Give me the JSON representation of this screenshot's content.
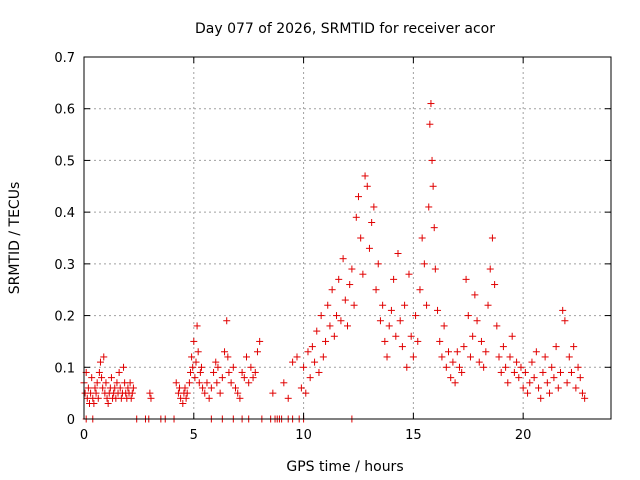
{
  "chart_data": {
    "type": "scatter",
    "marker": "plus",
    "title": "Day 077 of 2026, SRMTID for receiver acor",
    "xlabel": "GPS time / hours",
    "ylabel": "SRMTID / TECUs",
    "xlim": [
      0,
      24
    ],
    "ylim": [
      0,
      0.7
    ],
    "xticks": [
      0,
      5,
      10,
      15,
      20
    ],
    "yticks": [
      0,
      0.1,
      0.2,
      0.3,
      0.4,
      0.5,
      0.6,
      0.7
    ],
    "xtick_labels": [
      "0",
      "5",
      "10",
      "15",
      "20"
    ],
    "ytick_labels": [
      "0",
      "0.1",
      "0.2",
      "0.3",
      "0.4",
      "0.5",
      "0.6",
      "0.7"
    ],
    "grid": true,
    "series": [
      {
        "name": "acor",
        "color": "#e00000",
        "points": [
          [
            0.0,
            0.07
          ],
          [
            0.05,
            0.05
          ],
          [
            0.1,
            0.09
          ],
          [
            0.15,
            0.04
          ],
          [
            0.2,
            0.06
          ],
          [
            0.25,
            0.03
          ],
          [
            0.3,
            0.05
          ],
          [
            0.35,
            0.08
          ],
          [
            0.4,
            0.04
          ],
          [
            0.45,
            0.03
          ],
          [
            0.5,
            0.06
          ],
          [
            0.55,
            0.05
          ],
          [
            0.6,
            0.07
          ],
          [
            0.65,
            0.04
          ],
          [
            0.7,
            0.09
          ],
          [
            0.75,
            0.11
          ],
          [
            0.8,
            0.08
          ],
          [
            0.85,
            0.06
          ],
          [
            0.9,
            0.12
          ],
          [
            0.95,
            0.05
          ],
          [
            1.0,
            0.07
          ],
          [
            1.05,
            0.04
          ],
          [
            1.1,
            0.03
          ],
          [
            1.15,
            0.05
          ],
          [
            1.2,
            0.06
          ],
          [
            1.25,
            0.08
          ],
          [
            1.3,
            0.04
          ],
          [
            1.35,
            0.05
          ],
          [
            1.4,
            0.06
          ],
          [
            1.45,
            0.04
          ],
          [
            1.5,
            0.07
          ],
          [
            1.55,
            0.05
          ],
          [
            1.6,
            0.09
          ],
          [
            1.65,
            0.06
          ],
          [
            1.7,
            0.04
          ],
          [
            1.75,
            0.05
          ],
          [
            1.8,
            0.1
          ],
          [
            1.85,
            0.07
          ],
          [
            1.9,
            0.05
          ],
          [
            1.95,
            0.04
          ],
          [
            2.0,
            0.06
          ],
          [
            2.05,
            0.05
          ],
          [
            2.1,
            0.07
          ],
          [
            2.15,
            0.04
          ],
          [
            2.2,
            0.05
          ],
          [
            2.25,
            0.06
          ],
          [
            0.1,
            0.0
          ],
          [
            0.4,
            0.0
          ],
          [
            2.4,
            0.0
          ],
          [
            2.8,
            0.0
          ],
          [
            2.95,
            0.0
          ],
          [
            3.0,
            0.05
          ],
          [
            3.05,
            0.04
          ],
          [
            3.5,
            0.0
          ],
          [
            3.7,
            0.0
          ],
          [
            4.1,
            0.0
          ],
          [
            4.2,
            0.07
          ],
          [
            4.3,
            0.05
          ],
          [
            4.35,
            0.06
          ],
          [
            4.4,
            0.04
          ],
          [
            4.5,
            0.03
          ],
          [
            4.55,
            0.05
          ],
          [
            4.6,
            0.06
          ],
          [
            4.65,
            0.04
          ],
          [
            4.7,
            0.05
          ],
          [
            4.8,
            0.07
          ],
          [
            4.85,
            0.09
          ],
          [
            4.9,
            0.12
          ],
          [
            4.95,
            0.1
          ],
          [
            5.0,
            0.15
          ],
          [
            5.05,
            0.08
          ],
          [
            5.1,
            0.11
          ],
          [
            5.15,
            0.18
          ],
          [
            5.2,
            0.13
          ],
          [
            5.25,
            0.07
          ],
          [
            5.3,
            0.09
          ],
          [
            5.35,
            0.1
          ],
          [
            5.4,
            0.06
          ],
          [
            5.5,
            0.05
          ],
          [
            5.6,
            0.07
          ],
          [
            5.7,
            0.04
          ],
          [
            5.8,
            0.06
          ],
          [
            5.9,
            0.09
          ],
          [
            6.0,
            0.11
          ],
          [
            6.05,
            0.07
          ],
          [
            6.1,
            0.1
          ],
          [
            6.2,
            0.05
          ],
          [
            6.3,
            0.08
          ],
          [
            6.4,
            0.13
          ],
          [
            6.5,
            0.19
          ],
          [
            6.55,
            0.12
          ],
          [
            6.6,
            0.09
          ],
          [
            6.7,
            0.07
          ],
          [
            6.8,
            0.1
          ],
          [
            6.9,
            0.06
          ],
          [
            7.0,
            0.05
          ],
          [
            7.1,
            0.04
          ],
          [
            7.2,
            0.09
          ],
          [
            7.3,
            0.08
          ],
          [
            7.4,
            0.12
          ],
          [
            7.5,
            0.07
          ],
          [
            7.6,
            0.1
          ],
          [
            7.7,
            0.08
          ],
          [
            7.8,
            0.09
          ],
          [
            7.9,
            0.13
          ],
          [
            8.0,
            0.15
          ],
          [
            5.8,
            0.0
          ],
          [
            6.3,
            0.0
          ],
          [
            6.8,
            0.0
          ],
          [
            7.2,
            0.0
          ],
          [
            7.5,
            0.0
          ],
          [
            8.1,
            0.0
          ],
          [
            8.5,
            0.0
          ],
          [
            8.7,
            0.0
          ],
          [
            8.8,
            0.0
          ],
          [
            8.9,
            0.0
          ],
          [
            9.0,
            0.0
          ],
          [
            9.3,
            0.0
          ],
          [
            9.5,
            0.0
          ],
          [
            9.8,
            0.0
          ],
          [
            10.0,
            0.0
          ],
          [
            12.2,
            0.0
          ],
          [
            8.6,
            0.05
          ],
          [
            9.1,
            0.07
          ],
          [
            9.3,
            0.04
          ],
          [
            9.5,
            0.11
          ],
          [
            9.7,
            0.12
          ],
          [
            9.9,
            0.06
          ],
          [
            10.0,
            0.1
          ],
          [
            10.1,
            0.05
          ],
          [
            10.2,
            0.13
          ],
          [
            10.3,
            0.08
          ],
          [
            10.4,
            0.14
          ],
          [
            10.5,
            0.11
          ],
          [
            10.6,
            0.17
          ],
          [
            10.7,
            0.09
          ],
          [
            10.8,
            0.2
          ],
          [
            10.9,
            0.12
          ],
          [
            11.0,
            0.15
          ],
          [
            11.1,
            0.22
          ],
          [
            11.2,
            0.18
          ],
          [
            11.3,
            0.25
          ],
          [
            11.4,
            0.16
          ],
          [
            11.5,
            0.2
          ],
          [
            11.6,
            0.27
          ],
          [
            11.7,
            0.19
          ],
          [
            11.8,
            0.31
          ],
          [
            11.9,
            0.23
          ],
          [
            12.0,
            0.18
          ],
          [
            12.1,
            0.26
          ],
          [
            12.2,
            0.29
          ],
          [
            12.3,
            0.22
          ],
          [
            12.4,
            0.39
          ],
          [
            12.5,
            0.43
          ],
          [
            12.6,
            0.35
          ],
          [
            12.7,
            0.28
          ],
          [
            12.8,
            0.47
          ],
          [
            12.9,
            0.45
          ],
          [
            13.0,
            0.33
          ],
          [
            13.1,
            0.38
          ],
          [
            13.2,
            0.41
          ],
          [
            13.3,
            0.25
          ],
          [
            13.4,
            0.3
          ],
          [
            13.5,
            0.19
          ],
          [
            13.6,
            0.22
          ],
          [
            13.7,
            0.15
          ],
          [
            13.8,
            0.12
          ],
          [
            13.9,
            0.18
          ],
          [
            14.0,
            0.21
          ],
          [
            14.1,
            0.27
          ],
          [
            14.2,
            0.16
          ],
          [
            14.3,
            0.32
          ],
          [
            14.4,
            0.19
          ],
          [
            14.5,
            0.14
          ],
          [
            14.6,
            0.22
          ],
          [
            14.7,
            0.1
          ],
          [
            14.8,
            0.28
          ],
          [
            14.9,
            0.16
          ],
          [
            15.0,
            0.12
          ],
          [
            15.1,
            0.2
          ],
          [
            15.2,
            0.15
          ],
          [
            15.3,
            0.25
          ],
          [
            15.4,
            0.35
          ],
          [
            15.5,
            0.3
          ],
          [
            15.6,
            0.22
          ],
          [
            15.7,
            0.41
          ],
          [
            15.75,
            0.57
          ],
          [
            15.8,
            0.61
          ],
          [
            15.85,
            0.5
          ],
          [
            15.9,
            0.45
          ],
          [
            15.95,
            0.37
          ],
          [
            16.0,
            0.29
          ],
          [
            16.1,
            0.21
          ],
          [
            16.2,
            0.15
          ],
          [
            16.3,
            0.12
          ],
          [
            16.4,
            0.18
          ],
          [
            16.5,
            0.1
          ],
          [
            16.6,
            0.13
          ],
          [
            16.7,
            0.08
          ],
          [
            16.8,
            0.11
          ],
          [
            16.9,
            0.07
          ],
          [
            17.0,
            0.13
          ],
          [
            17.1,
            0.1
          ],
          [
            17.2,
            0.09
          ],
          [
            17.3,
            0.14
          ],
          [
            17.4,
            0.27
          ],
          [
            17.5,
            0.2
          ],
          [
            17.6,
            0.12
          ],
          [
            17.7,
            0.16
          ],
          [
            17.8,
            0.24
          ],
          [
            17.9,
            0.19
          ],
          [
            18.0,
            0.11
          ],
          [
            18.1,
            0.15
          ],
          [
            18.2,
            0.1
          ],
          [
            18.3,
            0.13
          ],
          [
            18.4,
            0.22
          ],
          [
            18.5,
            0.29
          ],
          [
            18.6,
            0.35
          ],
          [
            18.7,
            0.26
          ],
          [
            18.8,
            0.18
          ],
          [
            18.9,
            0.12
          ],
          [
            19.0,
            0.09
          ],
          [
            19.1,
            0.14
          ],
          [
            19.2,
            0.1
          ],
          [
            19.3,
            0.07
          ],
          [
            19.4,
            0.12
          ],
          [
            19.5,
            0.16
          ],
          [
            19.6,
            0.09
          ],
          [
            19.7,
            0.11
          ],
          [
            19.8,
            0.08
          ],
          [
            19.9,
            0.1
          ],
          [
            20.0,
            0.06
          ],
          [
            20.1,
            0.09
          ],
          [
            20.2,
            0.05
          ],
          [
            20.3,
            0.07
          ],
          [
            20.4,
            0.11
          ],
          [
            20.5,
            0.08
          ],
          [
            20.6,
            0.13
          ],
          [
            20.7,
            0.06
          ],
          [
            20.8,
            0.04
          ],
          [
            20.9,
            0.09
          ],
          [
            21.0,
            0.12
          ],
          [
            21.1,
            0.07
          ],
          [
            21.2,
            0.05
          ],
          [
            21.3,
            0.1
          ],
          [
            21.4,
            0.08
          ],
          [
            21.5,
            0.14
          ],
          [
            21.6,
            0.06
          ],
          [
            21.7,
            0.09
          ],
          [
            21.8,
            0.21
          ],
          [
            21.9,
            0.19
          ],
          [
            22.0,
            0.07
          ],
          [
            22.1,
            0.12
          ],
          [
            22.2,
            0.09
          ],
          [
            22.3,
            0.14
          ],
          [
            22.4,
            0.06
          ],
          [
            22.5,
            0.1
          ],
          [
            22.6,
            0.08
          ],
          [
            22.7,
            0.05
          ],
          [
            22.8,
            0.04
          ]
        ]
      }
    ]
  }
}
